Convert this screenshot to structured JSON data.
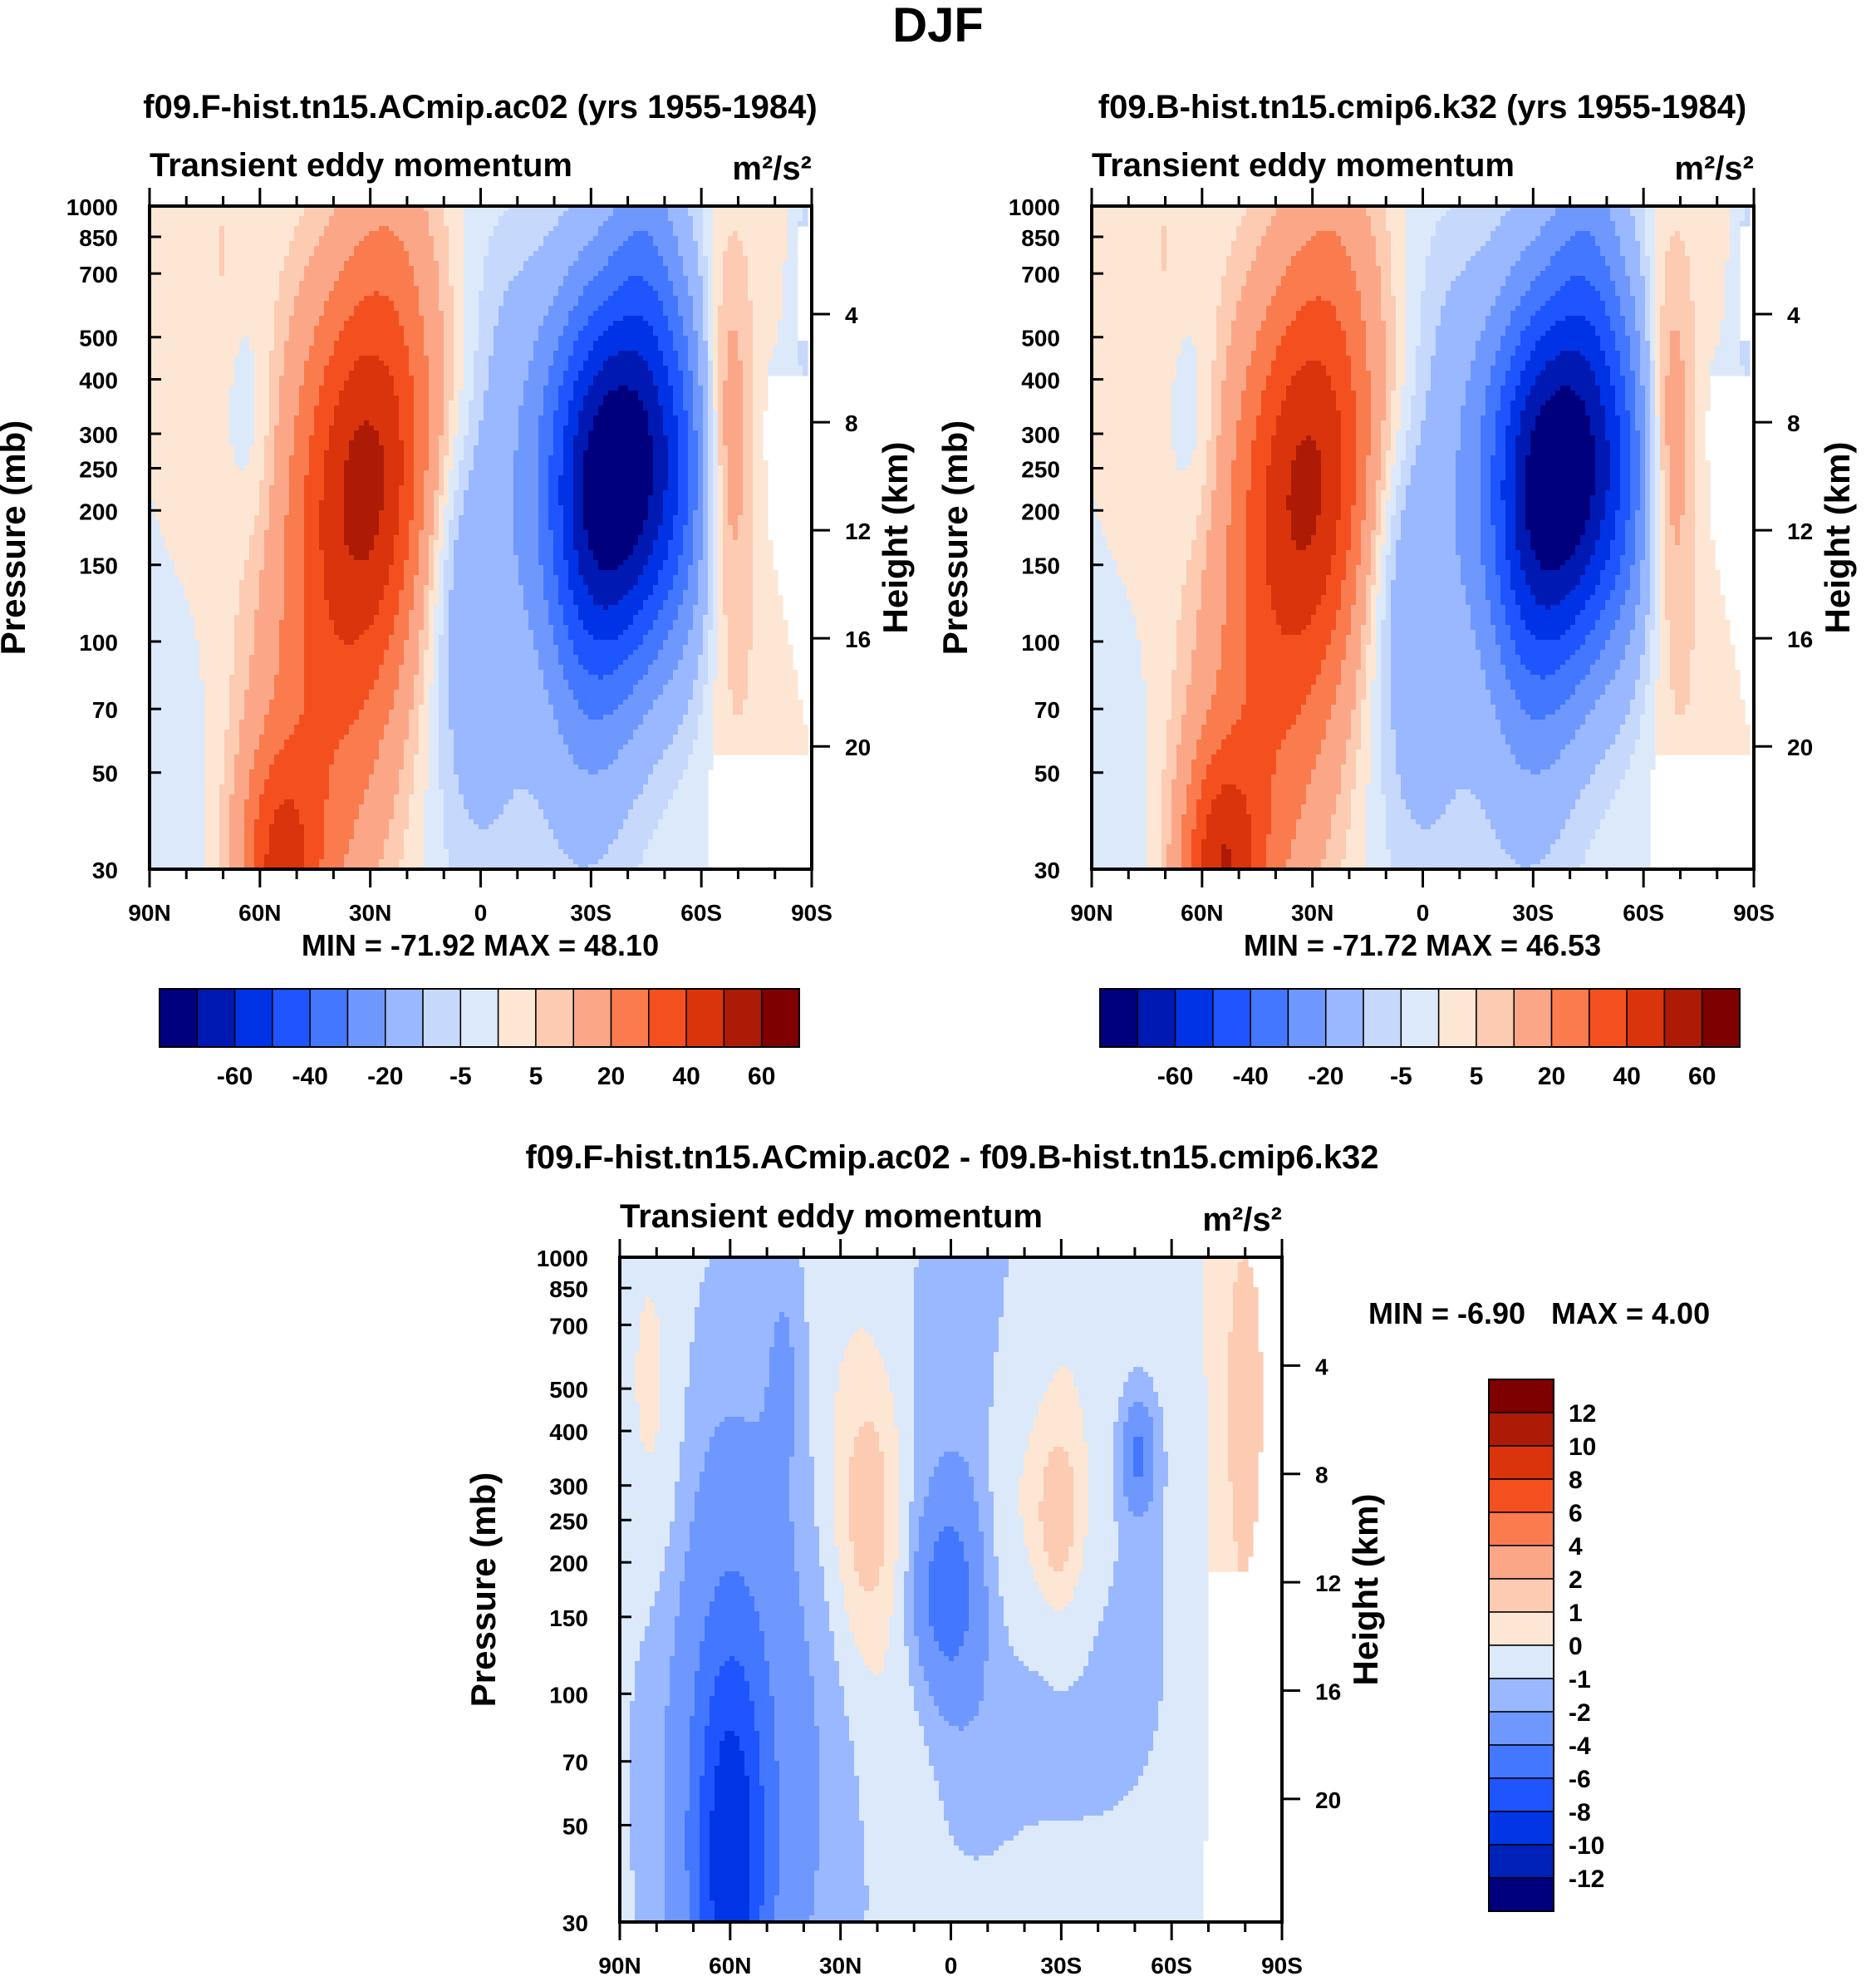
{
  "figure": {
    "title": "DJF"
  },
  "contour_levels": {
    "abs": [
      -70,
      -60,
      -50,
      -40,
      -30,
      -20,
      -10,
      -5,
      0,
      5,
      10,
      20,
      30,
      40,
      50,
      60,
      70
    ],
    "abs_labels": [
      "-60",
      "-40",
      "-20",
      "-5",
      "5",
      "20",
      "40",
      "60"
    ],
    "diff": [
      -12,
      -10,
      -8,
      -6,
      -4,
      -2,
      -1,
      0,
      1,
      2,
      4,
      6,
      8,
      10,
      12
    ],
    "diff_labels": [
      "12",
      "10",
      "8",
      "6",
      "4",
      "2",
      "1",
      "0",
      "-1",
      "-2",
      "-4",
      "-6",
      "-8",
      "-10",
      "-12"
    ]
  },
  "palette": {
    "abs": [
      "#00007f",
      "#0019b3",
      "#0033e6",
      "#1f55ff",
      "#4477ff",
      "#6f98ff",
      "#99b8ff",
      "#c6d9fc",
      "#dce9fa",
      "#fde6d4",
      "#fccbb2",
      "#fba787",
      "#fa7b4d",
      "#f4501f",
      "#d9340c",
      "#ad1b06",
      "#7f0000"
    ],
    "diff": [
      "#00007f",
      "#0022b8",
      "#0036e6",
      "#1f55ff",
      "#4477ff",
      "#6f98ff",
      "#99b8ff",
      "#dce9fa",
      "#fde6d4",
      "#fccbb2",
      "#fba787",
      "#fa7b4d",
      "#f4501f",
      "#d9340c",
      "#ad1b06",
      "#7f0000"
    ]
  },
  "axes": {
    "pressure_ticks": [
      {
        "p": 30,
        "label": "30"
      },
      {
        "p": 50,
        "label": "50"
      },
      {
        "p": 70,
        "label": "70"
      },
      {
        "p": 100,
        "label": "100"
      },
      {
        "p": 150,
        "label": "150"
      },
      {
        "p": 200,
        "label": "200"
      },
      {
        "p": 250,
        "label": "250"
      },
      {
        "p": 300,
        "label": "300"
      },
      {
        "p": 400,
        "label": "400"
      },
      {
        "p": 500,
        "label": "500"
      },
      {
        "p": 700,
        "label": "700"
      },
      {
        "p": 850,
        "label": "850"
      },
      {
        "p": 1000,
        "label": "1000"
      }
    ],
    "height_ticks": [
      {
        "km": 4,
        "label": "4"
      },
      {
        "km": 8,
        "label": "8"
      },
      {
        "km": 12,
        "label": "12"
      },
      {
        "km": 16,
        "label": "16"
      },
      {
        "km": 20,
        "label": "20"
      }
    ],
    "lat_ticks": [
      {
        "lat": 90,
        "label": "90N"
      },
      {
        "lat": 60,
        "label": "60N"
      },
      {
        "lat": 30,
        "label": "30N"
      },
      {
        "lat": 0,
        "label": "0"
      },
      {
        "lat": -30,
        "label": "30S"
      },
      {
        "lat": -60,
        "label": "60S"
      },
      {
        "lat": -90,
        "label": "90S"
      }
    ],
    "ylabel_left": "Pressure (mb)",
    "ylabel_right": "Height (km)"
  },
  "chart_data": [
    {
      "type": "heatmap",
      "panel": "model_a",
      "title": "f09.F-hist.tn15.ACmip.ac02 (yrs 1955-1984)",
      "subtitle_left": "Transient eddy momentum",
      "units": "m²/s²",
      "xlabel": "Latitude",
      "ylabel": "Pressure (mb)",
      "xlim": [
        90,
        -90
      ],
      "ylim": [
        1000,
        30
      ],
      "stats": "MIN = -71.92  MAX =  48.10",
      "min": -71.92,
      "max": 48.1,
      "features": [
        {
          "lat": -40,
          "p": 250,
          "value": -71.9
        },
        {
          "lat": 30,
          "p": 250,
          "value": 48.1
        },
        {
          "lat": 5,
          "p": 150,
          "value": -17
        },
        {
          "lat": -67,
          "p": 300,
          "value": 25
        },
        {
          "lat": 55,
          "p": 30,
          "value": 30
        },
        {
          "lat": 62,
          "p": 300,
          "value": -6
        }
      ]
    },
    {
      "type": "heatmap",
      "panel": "model_b",
      "title": "f09.B-hist.tn15.cmip6.k32 (yrs 1955-1984)",
      "subtitle_left": "Transient eddy momentum",
      "units": "m²/s²",
      "xlabel": "Latitude",
      "ylabel": "Pressure (mb)",
      "xlim": [
        90,
        -90
      ],
      "ylim": [
        1000,
        30
      ],
      "stats": "MIN = -71.72  MAX =  46.53",
      "min": -71.72,
      "max": 46.53,
      "features": [
        {
          "lat": -40,
          "p": 250,
          "value": -71.7
        },
        {
          "lat": 30,
          "p": 250,
          "value": 46.5
        },
        {
          "lat": 5,
          "p": 150,
          "value": -17
        },
        {
          "lat": -67,
          "p": 300,
          "value": 25
        },
        {
          "lat": 55,
          "p": 30,
          "value": 35
        },
        {
          "lat": 62,
          "p": 300,
          "value": -6
        }
      ]
    },
    {
      "type": "heatmap",
      "panel": "difference",
      "title": "f09.F-hist.tn15.ACmip.ac02 - f09.B-hist.tn15.cmip6.k32",
      "subtitle_left": "Transient eddy momentum",
      "units": "m²/s²",
      "xlabel": "Latitude",
      "ylabel": "Pressure (mb)",
      "xlim": [
        90,
        -90
      ],
      "ylim": [
        1000,
        30
      ],
      "stats_min_label": "MIN =  -6.90",
      "stats_max_label": "MAX =   4.00",
      "min": -6.9,
      "max": 4.0,
      "features": [
        {
          "lat": 60,
          "p": 40,
          "value": -6.9
        },
        {
          "lat": 1,
          "p": 170,
          "value": -3
        },
        {
          "lat": 22,
          "p": 250,
          "value": 2
        },
        {
          "lat": -29,
          "p": 250,
          "value": 2
        },
        {
          "lat": -51,
          "p": 350,
          "value": -3
        }
      ]
    }
  ]
}
